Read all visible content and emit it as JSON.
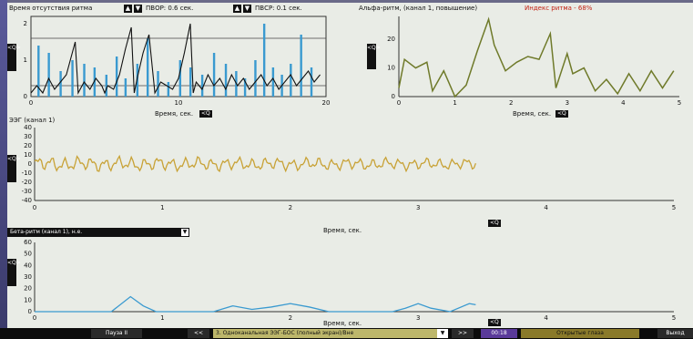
{
  "rhythm_absence_panel": {
    "title": "Время отсутствия ритма",
    "pvor_label": "ПВОР: 0.6 сек.",
    "pvsr_label": "ПВСР: 0.1 сек.",
    "x_axis_label": "Время, сек.",
    "x_ticks": [
      "0",
      "10",
      "20"
    ],
    "y_ticks": [
      "0",
      "1",
      "2"
    ]
  },
  "alpha_panel": {
    "title": "Альфа-ритм, (канал 1, повышение)",
    "index_label": "Индекс ритма - 68%",
    "x_axis_label": "Время, сек.",
    "x_ticks": [
      "0",
      "1",
      "2",
      "3",
      "4",
      "5"
    ],
    "y_ticks": [
      "0",
      "10",
      "20"
    ]
  },
  "eeg_panel": {
    "title": "ЭЭГ (канал 1)",
    "x_axis_label": "Время, сек.",
    "x_ticks": [
      "0",
      "1",
      "2",
      "3",
      "4",
      "5"
    ],
    "y_ticks": [
      "40",
      "30",
      "20",
      "10",
      "0",
      "-10",
      "-20",
      "-30",
      "-40"
    ]
  },
  "beta_panel": {
    "dropdown_label": "Бета-ритм (канал 1), н.е.",
    "x_axis_label": "Время, сек.",
    "x_ticks": [
      "0",
      "1",
      "2",
      "3",
      "4",
      "5"
    ],
    "y_ticks": [
      "60",
      "50",
      "40",
      "30",
      "20",
      "10",
      "0"
    ]
  },
  "toolbar": {
    "zoom_label": "<Q",
    "vzoom_label": "<Q>"
  },
  "bottom_bar": {
    "pause_label": "Пауза II",
    "prev_label": "<<",
    "mode_select": "3. Одноканальная ЭЭГ-БОС (полный экран)/Вне",
    "next_label": ">>",
    "time_label": "00:18",
    "state_label": "Открытые глаза",
    "exit_label": "Выход"
  },
  "colors": {
    "background": "#e9ece6",
    "eeg_trace": "#c8a236",
    "alpha_trace": "#6f7a2a",
    "beta_trace": "#3a9ad0",
    "blue_bars": "#3a9ad0",
    "black_trace": "#111111",
    "index_red": "#c21f10"
  },
  "chart_data": [
    {
      "type": "bar",
      "panel": "rhythm_absence",
      "xlim": [
        0,
        20
      ],
      "ylim": [
        0,
        2.2
      ],
      "threshold_lines": [
        1.6,
        0.3
      ],
      "blue_bars": {
        "x": [
          0.5,
          1.2,
          2.0,
          2.8,
          3.6,
          4.3,
          5.1,
          5.8,
          6.4,
          7.2,
          7.9,
          8.6,
          9.3,
          10.1,
          10.8,
          11.6,
          12.4,
          13.2,
          13.9,
          14.5,
          15.2,
          15.8,
          16.4,
          17.0,
          17.6,
          18.3,
          19.0
        ],
        "values": [
          1.4,
          1.2,
          0.7,
          1.0,
          0.9,
          0.8,
          0.6,
          1.1,
          0.5,
          0.9,
          1.6,
          0.7,
          0.4,
          1.0,
          0.8,
          0.6,
          1.2,
          0.9,
          0.7,
          0.5,
          1.0,
          2.0,
          0.8,
          0.6,
          0.9,
          1.7,
          0.8
        ]
      },
      "black_series": {
        "x": [
          0,
          0.4,
          0.8,
          1.2,
          1.6,
          2.0,
          2.4,
          2.8,
          3.0,
          3.2,
          3.6,
          4.0,
          4.4,
          4.8,
          5.0,
          5.2,
          5.6,
          6.0,
          6.4,
          6.8,
          7.0,
          7.2,
          7.6,
          8.0,
          8.4,
          8.8,
          9.2,
          9.6,
          10.0,
          10.4,
          10.8,
          11.0,
          11.2,
          11.6,
          12.0,
          12.4,
          12.8,
          13.2,
          13.6,
          14.0,
          14.4,
          14.8,
          15.2,
          15.6,
          16.0,
          16.4,
          16.8,
          17.2,
          17.6,
          18.0,
          18.4,
          18.8,
          19.2,
          19.6
        ],
        "values": [
          0.1,
          0.3,
          0.1,
          0.5,
          0.2,
          0.4,
          0.6,
          1.2,
          1.5,
          0.1,
          0.4,
          0.2,
          0.5,
          0.3,
          0.1,
          0.3,
          0.2,
          0.6,
          1.3,
          1.9,
          0.1,
          0.5,
          1.2,
          1.7,
          0.1,
          0.4,
          0.3,
          0.2,
          0.5,
          1.2,
          2.0,
          0.1,
          0.4,
          0.2,
          0.6,
          0.3,
          0.5,
          0.2,
          0.6,
          0.3,
          0.5,
          0.2,
          0.4,
          0.6,
          0.3,
          0.5,
          0.2,
          0.4,
          0.6,
          0.3,
          0.5,
          0.7,
          0.4,
          0.6
        ]
      }
    },
    {
      "type": "line",
      "panel": "alpha",
      "x": [
        0,
        0.1,
        0.3,
        0.5,
        0.6,
        0.8,
        1.0,
        1.2,
        1.4,
        1.6,
        1.7,
        1.9,
        2.1,
        2.3,
        2.5,
        2.7,
        2.8,
        3.0,
        3.1,
        3.3,
        3.5,
        3.7,
        3.9,
        4.1,
        4.3,
        4.5,
        4.7,
        4.9
      ],
      "values": [
        3,
        13,
        10,
        12,
        2,
        9,
        0,
        4,
        16,
        27,
        18,
        9,
        12,
        14,
        13,
        22,
        3,
        15,
        8,
        10,
        2,
        6,
        1,
        8,
        2,
        9,
        3,
        9
      ],
      "xlim": [
        0,
        5
      ],
      "ylim": [
        0,
        28
      ]
    },
    {
      "type": "line",
      "panel": "eeg",
      "x_start": 0,
      "x_end": 3.45,
      "xlim": [
        0,
        5
      ],
      "ylim": [
        -40,
        40
      ],
      "amplitude": 7
    },
    {
      "type": "line",
      "panel": "beta",
      "x": [
        0,
        0.6,
        0.75,
        0.85,
        0.95,
        1.05,
        1.4,
        1.55,
        1.7,
        1.85,
        2.0,
        2.15,
        2.3,
        2.6,
        2.8,
        2.9,
        3.0,
        3.1,
        3.25,
        3.4,
        3.45
      ],
      "values": [
        0,
        0,
        13,
        5,
        0,
        0,
        0,
        5,
        2,
        4,
        7,
        4,
        0,
        0,
        0,
        3,
        7,
        3,
        0,
        7,
        6
      ],
      "xlim": [
        0,
        5
      ],
      "ylim": [
        0,
        60
      ]
    }
  ]
}
